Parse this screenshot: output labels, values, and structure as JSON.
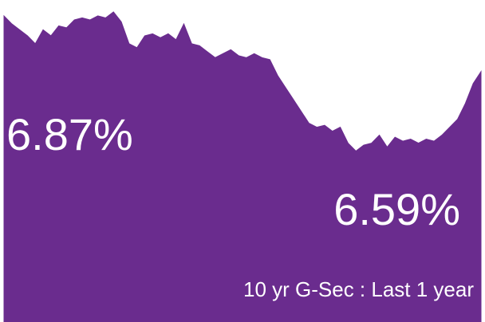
{
  "chart_data": {
    "type": "area",
    "annotations": [
      "6.87%",
      "6.59%"
    ],
    "caption": "10 yr G-Sec : Last 1 year",
    "color": "#6a2c8e",
    "values": [
      6.87,
      6.83,
      6.8,
      6.77,
      6.73,
      6.8,
      6.77,
      6.82,
      6.81,
      6.85,
      6.86,
      6.85,
      6.87,
      6.86,
      6.89,
      6.84,
      6.73,
      6.71,
      6.77,
      6.78,
      6.76,
      6.78,
      6.75,
      6.83,
      6.73,
      6.72,
      6.69,
      6.66,
      6.68,
      6.7,
      6.67,
      6.66,
      6.68,
      6.66,
      6.65,
      6.57,
      6.51,
      6.45,
      6.39,
      6.33,
      6.31,
      6.32,
      6.29,
      6.31,
      6.23,
      6.19,
      6.22,
      6.23,
      6.27,
      6.21,
      6.26,
      6.24,
      6.25,
      6.23,
      6.25,
      6.24,
      6.27,
      6.31,
      6.35,
      6.43,
      6.53,
      6.59
    ],
    "ylim": [
      5.33,
      6.95
    ]
  }
}
